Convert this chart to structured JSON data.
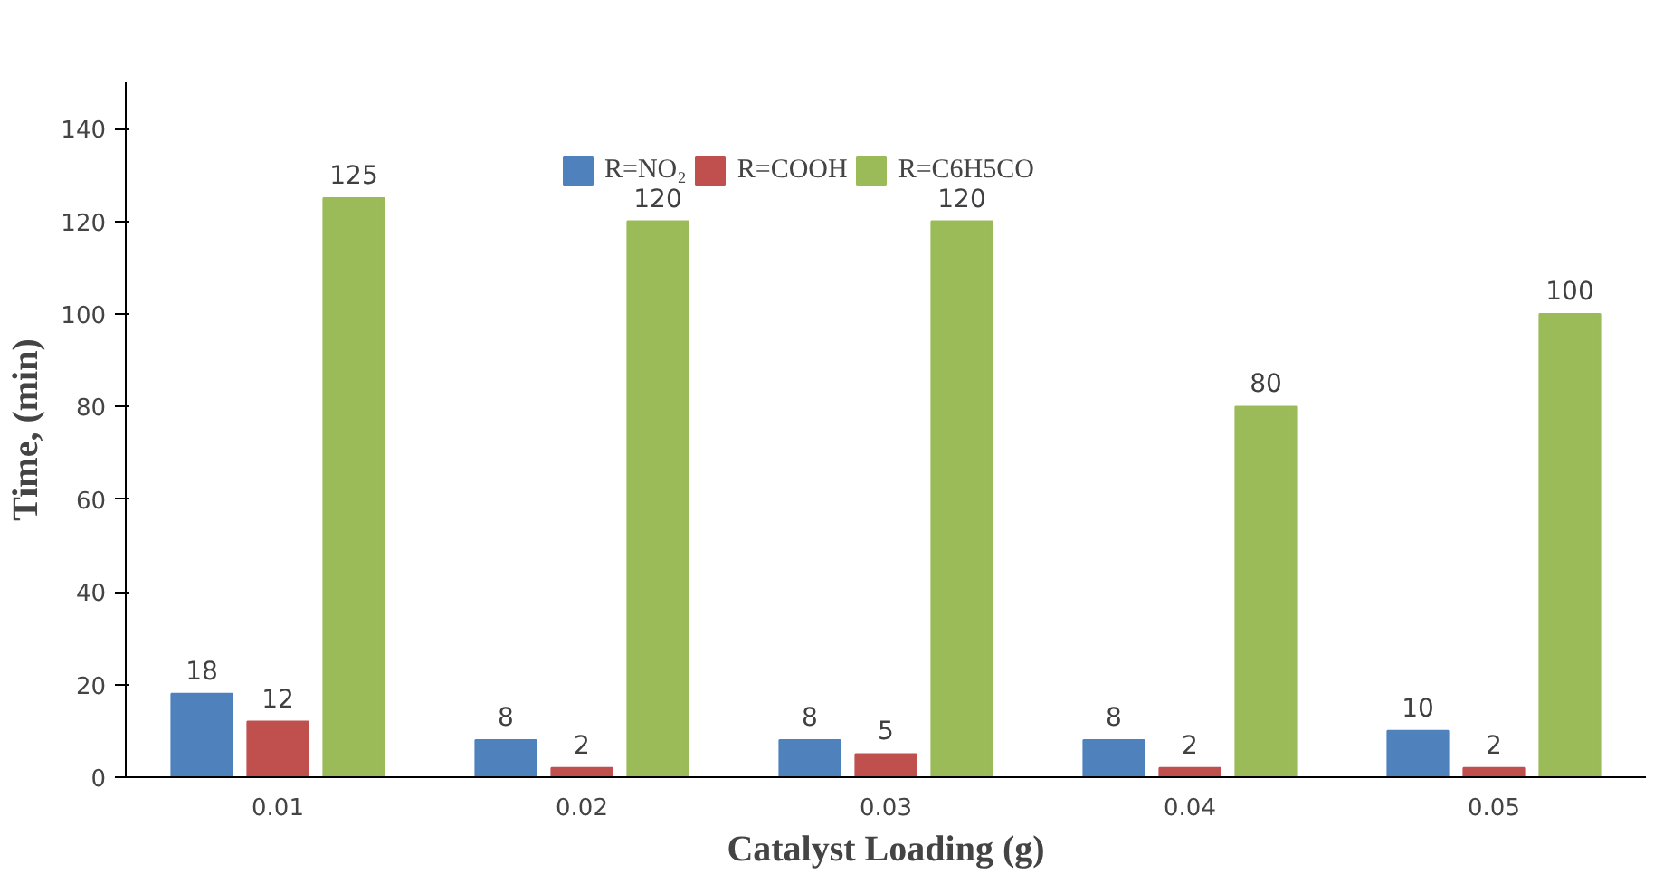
{
  "chart_data": {
    "type": "bar",
    "xlabel": "Catalyst Loading (g)",
    "ylabel": "Time, (min)",
    "categories": [
      "0.01",
      "0.02",
      "0.03",
      "0.04",
      "0.05"
    ],
    "series": [
      {
        "name": "R=NO₂",
        "color": "#4f81bd",
        "values": [
          18,
          8,
          8,
          8,
          10
        ]
      },
      {
        "name": "R=COOH",
        "color": "#c0504d",
        "values": [
          12,
          2,
          5,
          2,
          2
        ]
      },
      {
        "name": "R=C6H5CO",
        "color": "#9bbb59",
        "values": [
          125,
          120,
          120,
          80,
          100
        ]
      }
    ],
    "ylim": [
      0,
      150
    ],
    "yticks": [
      0,
      20,
      40,
      60,
      80,
      100,
      120,
      140
    ],
    "grid": false,
    "legend": "top",
    "data_labels": true
  }
}
